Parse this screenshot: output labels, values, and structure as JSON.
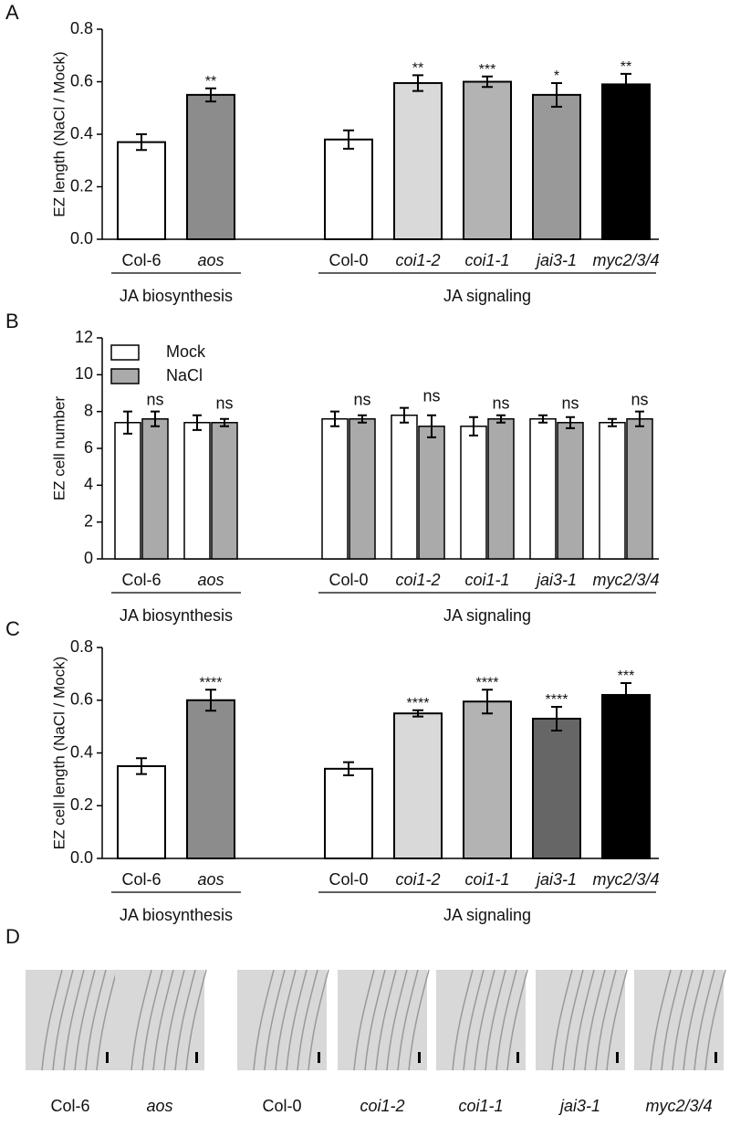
{
  "chart_data": [
    {
      "type": "bar",
      "panel_label": "A",
      "ylabel": "EZ length (NaCl / Mock)",
      "groups": [
        {
          "name": "JA biosynthesis",
          "categories": [
            "Col-6",
            "aos"
          ]
        },
        {
          "name": "JA signaling",
          "categories": [
            "Col-0",
            "coi1-2",
            "coi1-1",
            "jai3-1",
            "myc2/3/4"
          ]
        }
      ],
      "values": [
        0.37,
        0.55,
        0.38,
        0.595,
        0.6,
        0.55,
        0.59
      ],
      "errors": [
        0.03,
        0.025,
        0.035,
        0.03,
        0.02,
        0.045,
        0.04
      ],
      "annotations": [
        null,
        "**",
        null,
        "**",
        "***",
        "*",
        "**"
      ],
      "colors": [
        "#ffffff",
        "#8c8c8c",
        "#ffffff",
        "#d9d9d9",
        "#b3b3b3",
        "#999999",
        "#000000"
      ],
      "ylim": [
        0,
        0.8
      ],
      "yticks": [
        {
          "value": 0,
          "label": "0.0"
        },
        0.2,
        0.4,
        0.6,
        0.8
      ]
    },
    {
      "type": "grouped-bar",
      "panel_label": "B",
      "ylabel": "EZ cell number",
      "legend": "top-left",
      "groups": [
        {
          "name": "JA biosynthesis",
          "categories": [
            "Col-6",
            "aos"
          ]
        },
        {
          "name": "JA signaling",
          "categories": [
            "Col-0",
            "coi1-2",
            "coi1-1",
            "jai3-1",
            "myc2/3/4"
          ]
        }
      ],
      "series": [
        {
          "name": "Mock",
          "color": "#ffffff",
          "values": [
            7.4,
            7.4,
            7.6,
            7.8,
            7.2,
            7.6,
            7.4
          ],
          "errors": [
            0.6,
            0.4,
            0.4,
            0.4,
            0.5,
            0.2,
            0.2
          ]
        },
        {
          "name": "NaCl",
          "color": "#aaaaaa",
          "values": [
            7.6,
            7.4,
            7.6,
            7.2,
            7.6,
            7.4,
            7.6
          ],
          "errors": [
            0.4,
            0.2,
            0.2,
            0.6,
            0.2,
            0.3,
            0.4
          ]
        }
      ],
      "annotations": [
        "ns",
        "ns",
        "ns",
        "ns",
        "ns",
        "ns",
        "ns"
      ],
      "ylim": [
        0,
        12
      ],
      "yticks": [
        0,
        2,
        4,
        6,
        8,
        10,
        12
      ]
    },
    {
      "type": "bar",
      "panel_label": "C",
      "ylabel": "EZ cell length (NaCl / Mock)",
      "groups": [
        {
          "name": "JA biosynthesis",
          "categories": [
            "Col-6",
            "aos"
          ]
        },
        {
          "name": "JA signaling",
          "categories": [
            "Col-0",
            "coi1-2",
            "coi1-1",
            "jai3-1",
            "myc2/3/4"
          ]
        }
      ],
      "values": [
        0.35,
        0.6,
        0.34,
        0.55,
        0.595,
        0.53,
        0.62
      ],
      "errors": [
        0.03,
        0.04,
        0.025,
        0.012,
        0.045,
        0.045,
        0.045
      ],
      "annotations": [
        null,
        "****",
        null,
        "****",
        "****",
        "****",
        "***"
      ],
      "colors": [
        "#ffffff",
        "#8c8c8c",
        "#ffffff",
        "#d9d9d9",
        "#b3b3b3",
        "#666666",
        "#000000"
      ],
      "ylim": [
        0,
        0.8
      ],
      "yticks": [
        {
          "value": 0,
          "label": "0.0"
        },
        0.2,
        0.4,
        0.6,
        0.8
      ]
    }
  ],
  "images": {
    "panel_label": "D",
    "captions": [
      "Col-6",
      "aos",
      "Col-0",
      "coi1-2",
      "coi1-1",
      "jai3-1",
      "myc2/3/4"
    ]
  }
}
